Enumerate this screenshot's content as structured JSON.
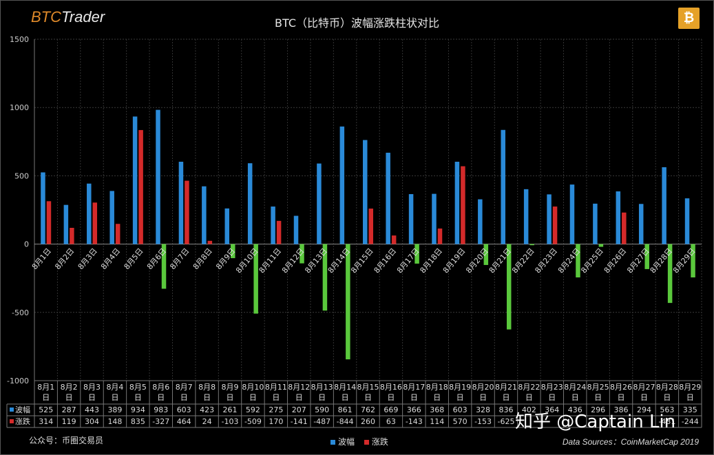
{
  "brand": {
    "part1": "BTC",
    "part2": "Trader"
  },
  "chart_data": {
    "type": "bar",
    "title": "BTC（比特币）波幅涨跌柱状对比",
    "ylim": [
      -1000,
      1500
    ],
    "yticks": [
      -1000,
      -500,
      0,
      500,
      1000,
      1500
    ],
    "grid": true,
    "legend_position": "bottom",
    "categories": [
      "8月1日",
      "8月2日",
      "8月3日",
      "8月4日",
      "8月5日",
      "8月6日",
      "8月7日",
      "8月8日",
      "8月9日",
      "8月10日",
      "8月11日",
      "8月12日",
      "8月13日",
      "8月14日",
      "8月15日",
      "8月16日",
      "8月17日",
      "8月18日",
      "8月19日",
      "8月20日",
      "8月21日",
      "8月22日",
      "8月23日",
      "8月24日",
      "8月25日",
      "8月26日",
      "8月27日",
      "8月28日",
      "8月29日"
    ],
    "table_headers": [
      "8月1\n日",
      "8月2\n日",
      "8月3\n日",
      "8月4\n日",
      "8月5\n日",
      "8月6\n日",
      "8月7\n日",
      "8月8\n日",
      "8月9\n日",
      "8月10\n日",
      "8月11\n日",
      "8月12\n日",
      "8月13\n日",
      "8月14\n日",
      "8月15\n日",
      "8月16\n日",
      "8月17\n日",
      "8月18\n日",
      "8月19\n日",
      "8月20\n日",
      "8月21\n日",
      "8月22\n日",
      "8月23\n日",
      "8月24\n日",
      "8月25\n日",
      "8月26\n日",
      "8月27\n日",
      "8月28\n日",
      "8月29\n日"
    ],
    "series": [
      {
        "name": "波幅",
        "color": "#2a8ad8",
        "values": [
          525,
          287,
          443,
          389,
          934,
          983,
          603,
          423,
          261,
          592,
          275,
          207,
          590,
          861,
          762,
          669,
          366,
          368,
          603,
          328,
          836,
          402,
          364,
          436,
          296,
          386,
          294,
          563,
          335
        ]
      },
      {
        "name": "涨跌",
        "pos_color": "#d42a2a",
        "neg_color": "#5ac83c",
        "values": [
          314,
          119,
          304,
          148,
          835,
          -327,
          464,
          24,
          -103,
          -509,
          170,
          -141,
          -487,
          -844,
          260,
          63,
          -143,
          114,
          570,
          -153,
          -625,
          -8,
          275,
          -244,
          -20,
          231,
          -183,
          -431,
          -244
        ]
      }
    ],
    "table_values": {
      "range": [
        "525",
        "287",
        "443",
        "389",
        "934",
        "983",
        "603",
        "423",
        "261",
        "592",
        "275",
        "207",
        "590",
        "861",
        "762",
        "669",
        "366",
        "368",
        "603",
        "328",
        "836",
        "402",
        "364",
        "436",
        "296",
        "386",
        "294",
        "563",
        "335"
      ],
      "change": [
        "314",
        "119",
        "304",
        "148",
        "835",
        "-327",
        "464",
        "24",
        "-103",
        "-509",
        "170",
        "-141",
        "-487",
        "-844",
        "260",
        "63",
        "-143",
        "114",
        "570",
        "-153",
        "-625",
        "",
        "",
        "",
        "",
        "",
        "",
        "-431",
        "-244"
      ]
    }
  },
  "footer": {
    "account": "公众号：币圈交易员",
    "source": "Data Sources：CoinMarketCap 2019",
    "watermark": "知乎 @Captain Lin"
  },
  "icons": {
    "coin": "bitcoin-icon"
  }
}
